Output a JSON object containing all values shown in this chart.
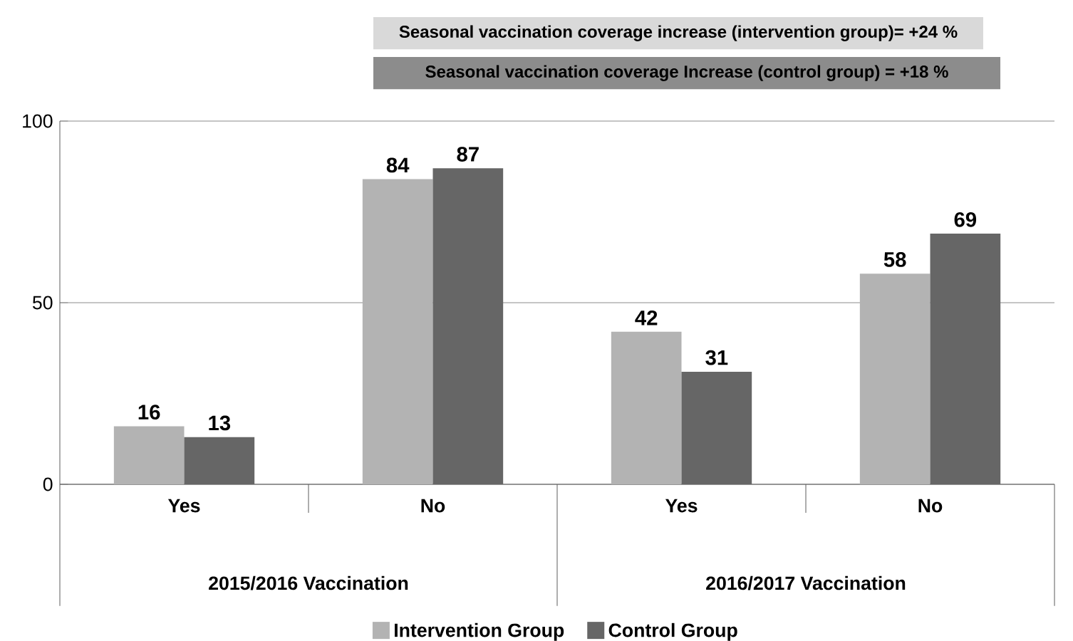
{
  "chart_data": {
    "type": "bar",
    "categories": [
      "Yes",
      "No",
      "Yes",
      "No"
    ],
    "series": [
      {
        "name": "Intervention Group",
        "color": "#b3b3b3",
        "values": [
          16,
          84,
          42,
          58
        ]
      },
      {
        "name": "Control Group",
        "color": "#666666",
        "values": [
          13,
          87,
          31,
          69
        ]
      }
    ],
    "ylim": [
      0,
      100
    ],
    "yticks": [
      0,
      50,
      100
    ],
    "grid": "y",
    "data_labels": true,
    "legend": "bottom",
    "annotations": [
      "Seasonal vaccination coverage increase (intervention group)= +24 %",
      "Seasonal vaccination coverage Increase (control group) = +18 %",
      "2015/2016 Vaccination",
      "2016/2017 Vaccination"
    ]
  }
}
